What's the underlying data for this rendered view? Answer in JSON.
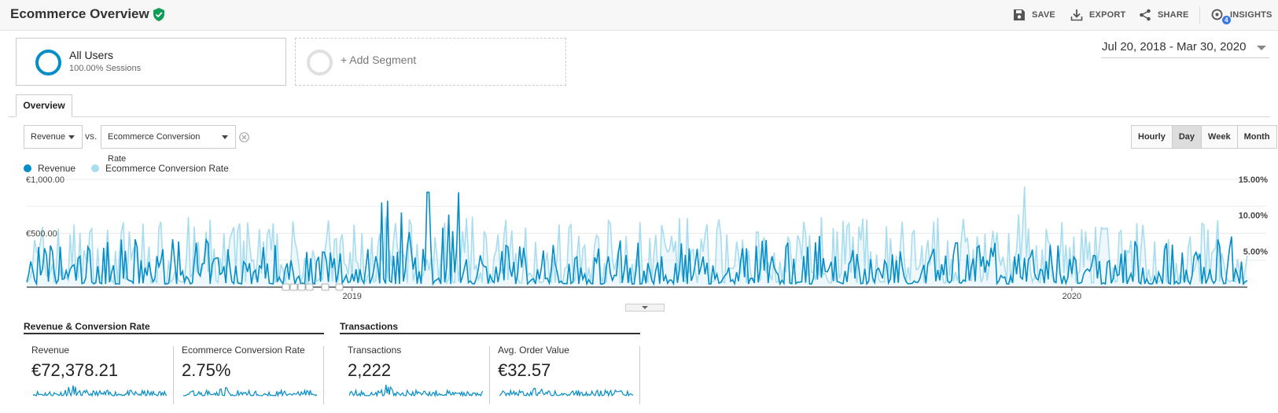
{
  "header": {
    "title": "Ecommerce Overview",
    "actions": {
      "save": "SAVE",
      "export": "EXPORT",
      "share": "SHARE",
      "insights": "INSIGHTS",
      "insights_badge": "4"
    }
  },
  "segments": {
    "active": {
      "name": "All Users",
      "sub": "100.00% Sessions"
    },
    "add_label": "+ Add Segment"
  },
  "date_range": "Jul 20, 2018 - Mar 30, 2020",
  "tabs": {
    "overview": "Overview"
  },
  "controls": {
    "primary_metric": "Revenue",
    "vs": "vs.",
    "secondary_metric": "Ecommerce Conversion Rate",
    "granularity": [
      "Hourly",
      "Day",
      "Week",
      "Month"
    ],
    "granularity_selected": "Day"
  },
  "colors": {
    "revenue": "#058dc7",
    "conversion": "#a8dcef",
    "accent": "#058dc7",
    "verified": "#0f9d58"
  },
  "chart_data": {
    "type": "line",
    "series": [
      {
        "name": "Revenue",
        "axis": "left"
      },
      {
        "name": "Ecommerce Conversion Rate",
        "axis": "right"
      }
    ],
    "x_range": [
      "2018-07-20",
      "2020-03-30"
    ],
    "x_ticks": [
      "2019",
      "2020"
    ],
    "y_left": {
      "ticks": [
        "€500.00",
        "€1,000.00"
      ],
      "ylim": [
        0,
        1000
      ]
    },
    "y_right": {
      "ticks": [
        "5.00%",
        "10.00%",
        "15.00%"
      ],
      "ylim": [
        0,
        15
      ]
    },
    "grid": true
  },
  "summary": {
    "group1_title": "Revenue & Conversion Rate",
    "group2_title": "Transactions",
    "metrics": [
      {
        "label": "Revenue",
        "value": "€72,378.21"
      },
      {
        "label": "Ecommerce Conversion Rate",
        "value": "2.75%"
      },
      {
        "label": "Transactions",
        "value": "2,222"
      },
      {
        "label": "Avg. Order Value",
        "value": "€32.57"
      }
    ]
  }
}
